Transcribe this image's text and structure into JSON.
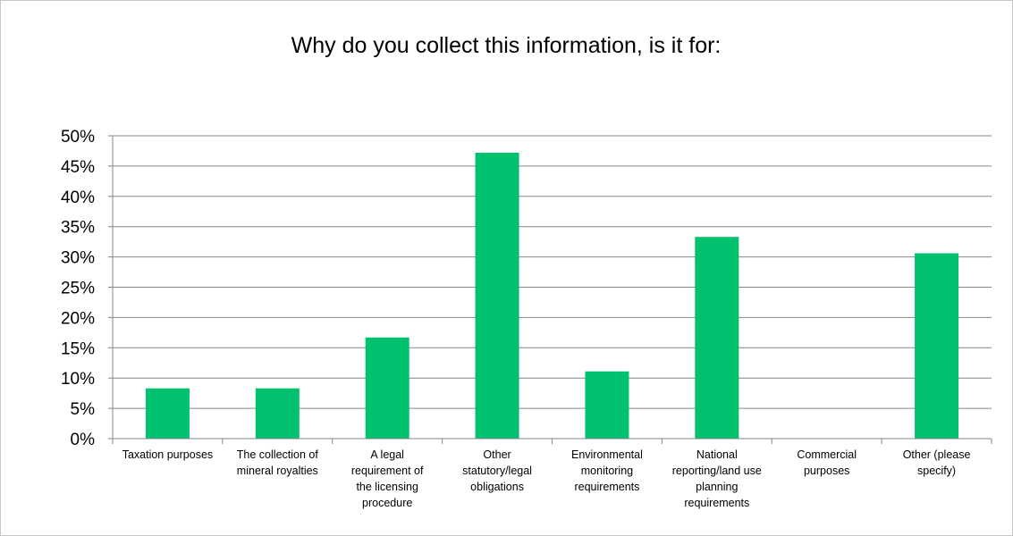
{
  "chart_data": {
    "type": "bar",
    "title": "Why do you collect this information, is it for:",
    "categories": [
      "Taxation purposes",
      "The collection of mineral royalties",
      "A legal requirement of the licensing procedure",
      "Other statutory/legal obligations",
      "Environmental monitoring requirements",
      "National reporting/land use planning requirements",
      "Commercial purposes",
      "Other (please specify)"
    ],
    "category_label_lines": [
      [
        "Taxation purposes"
      ],
      [
        "The collection of",
        "mineral royalties"
      ],
      [
        "A legal",
        "requirement of",
        "the licensing",
        "procedure"
      ],
      [
        "Other",
        "statutory/legal",
        "obligations"
      ],
      [
        "Environmental",
        "monitoring",
        "requirements"
      ],
      [
        "National",
        "reporting/land use",
        "planning",
        "requirements"
      ],
      [
        "Commercial",
        "purposes"
      ],
      [
        "Other (please",
        "specify)"
      ]
    ],
    "values": [
      8.3,
      8.3,
      16.7,
      47.2,
      11.1,
      33.3,
      0,
      30.6
    ],
    "ytick_labels": [
      "0%",
      "5%",
      "10%",
      "15%",
      "20%",
      "25%",
      "30%",
      "35%",
      "40%",
      "45%",
      "50%"
    ],
    "ytick_values": [
      0,
      5,
      10,
      15,
      20,
      25,
      30,
      35,
      40,
      45,
      50
    ],
    "ylim": [
      0,
      50
    ],
    "xlabel": "",
    "ylabel": "",
    "grid": true,
    "legend": "none",
    "bar_color": "#00c16e",
    "grid_color": "#868686"
  }
}
